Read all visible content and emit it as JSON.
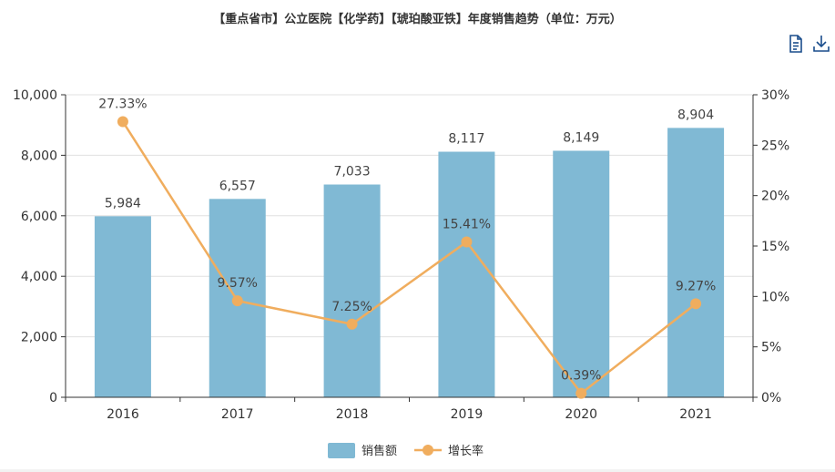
{
  "title": "【重点省市】公立医院【化学药】【琥珀酸亚铁】年度销售趋势（单位：万元）",
  "toolbox": {
    "data_view_icon": "document-icon",
    "save_icon": "download-icon",
    "color": "#1a4d8c"
  },
  "colors": {
    "bar": "#80b9d4",
    "line": "#f0ad5e",
    "axis": "#333333",
    "grid": "#e0e0e0",
    "label": "#444444"
  },
  "chart_data": {
    "type": "bar",
    "categories": [
      "2016",
      "2017",
      "2018",
      "2019",
      "2020",
      "2021"
    ],
    "series": [
      {
        "name": "销售额",
        "type": "bar",
        "axis": "left",
        "values": [
          5984,
          6557,
          7033,
          8117,
          8149,
          8904
        ],
        "labels": [
          "5,984",
          "6,557",
          "7,033",
          "8,117",
          "8,149",
          "8,904"
        ]
      },
      {
        "name": "增长率",
        "type": "line",
        "axis": "right",
        "values": [
          27.33,
          9.57,
          7.25,
          15.41,
          0.39,
          9.27
        ],
        "labels": [
          "27.33%",
          "9.57%",
          "7.25%",
          "15.41%",
          "0.39%",
          "9.27%"
        ]
      }
    ],
    "y_left": {
      "min": 0,
      "max": 10000,
      "ticks": [
        "0",
        "2,000",
        "4,000",
        "6,000",
        "8,000",
        "10,000"
      ]
    },
    "y_right": {
      "min": 0,
      "max": 30,
      "ticks": [
        "0%",
        "5%",
        "10%",
        "15%",
        "20%",
        "25%",
        "30%"
      ]
    },
    "grid": true,
    "legend_position": "bottom-center"
  }
}
